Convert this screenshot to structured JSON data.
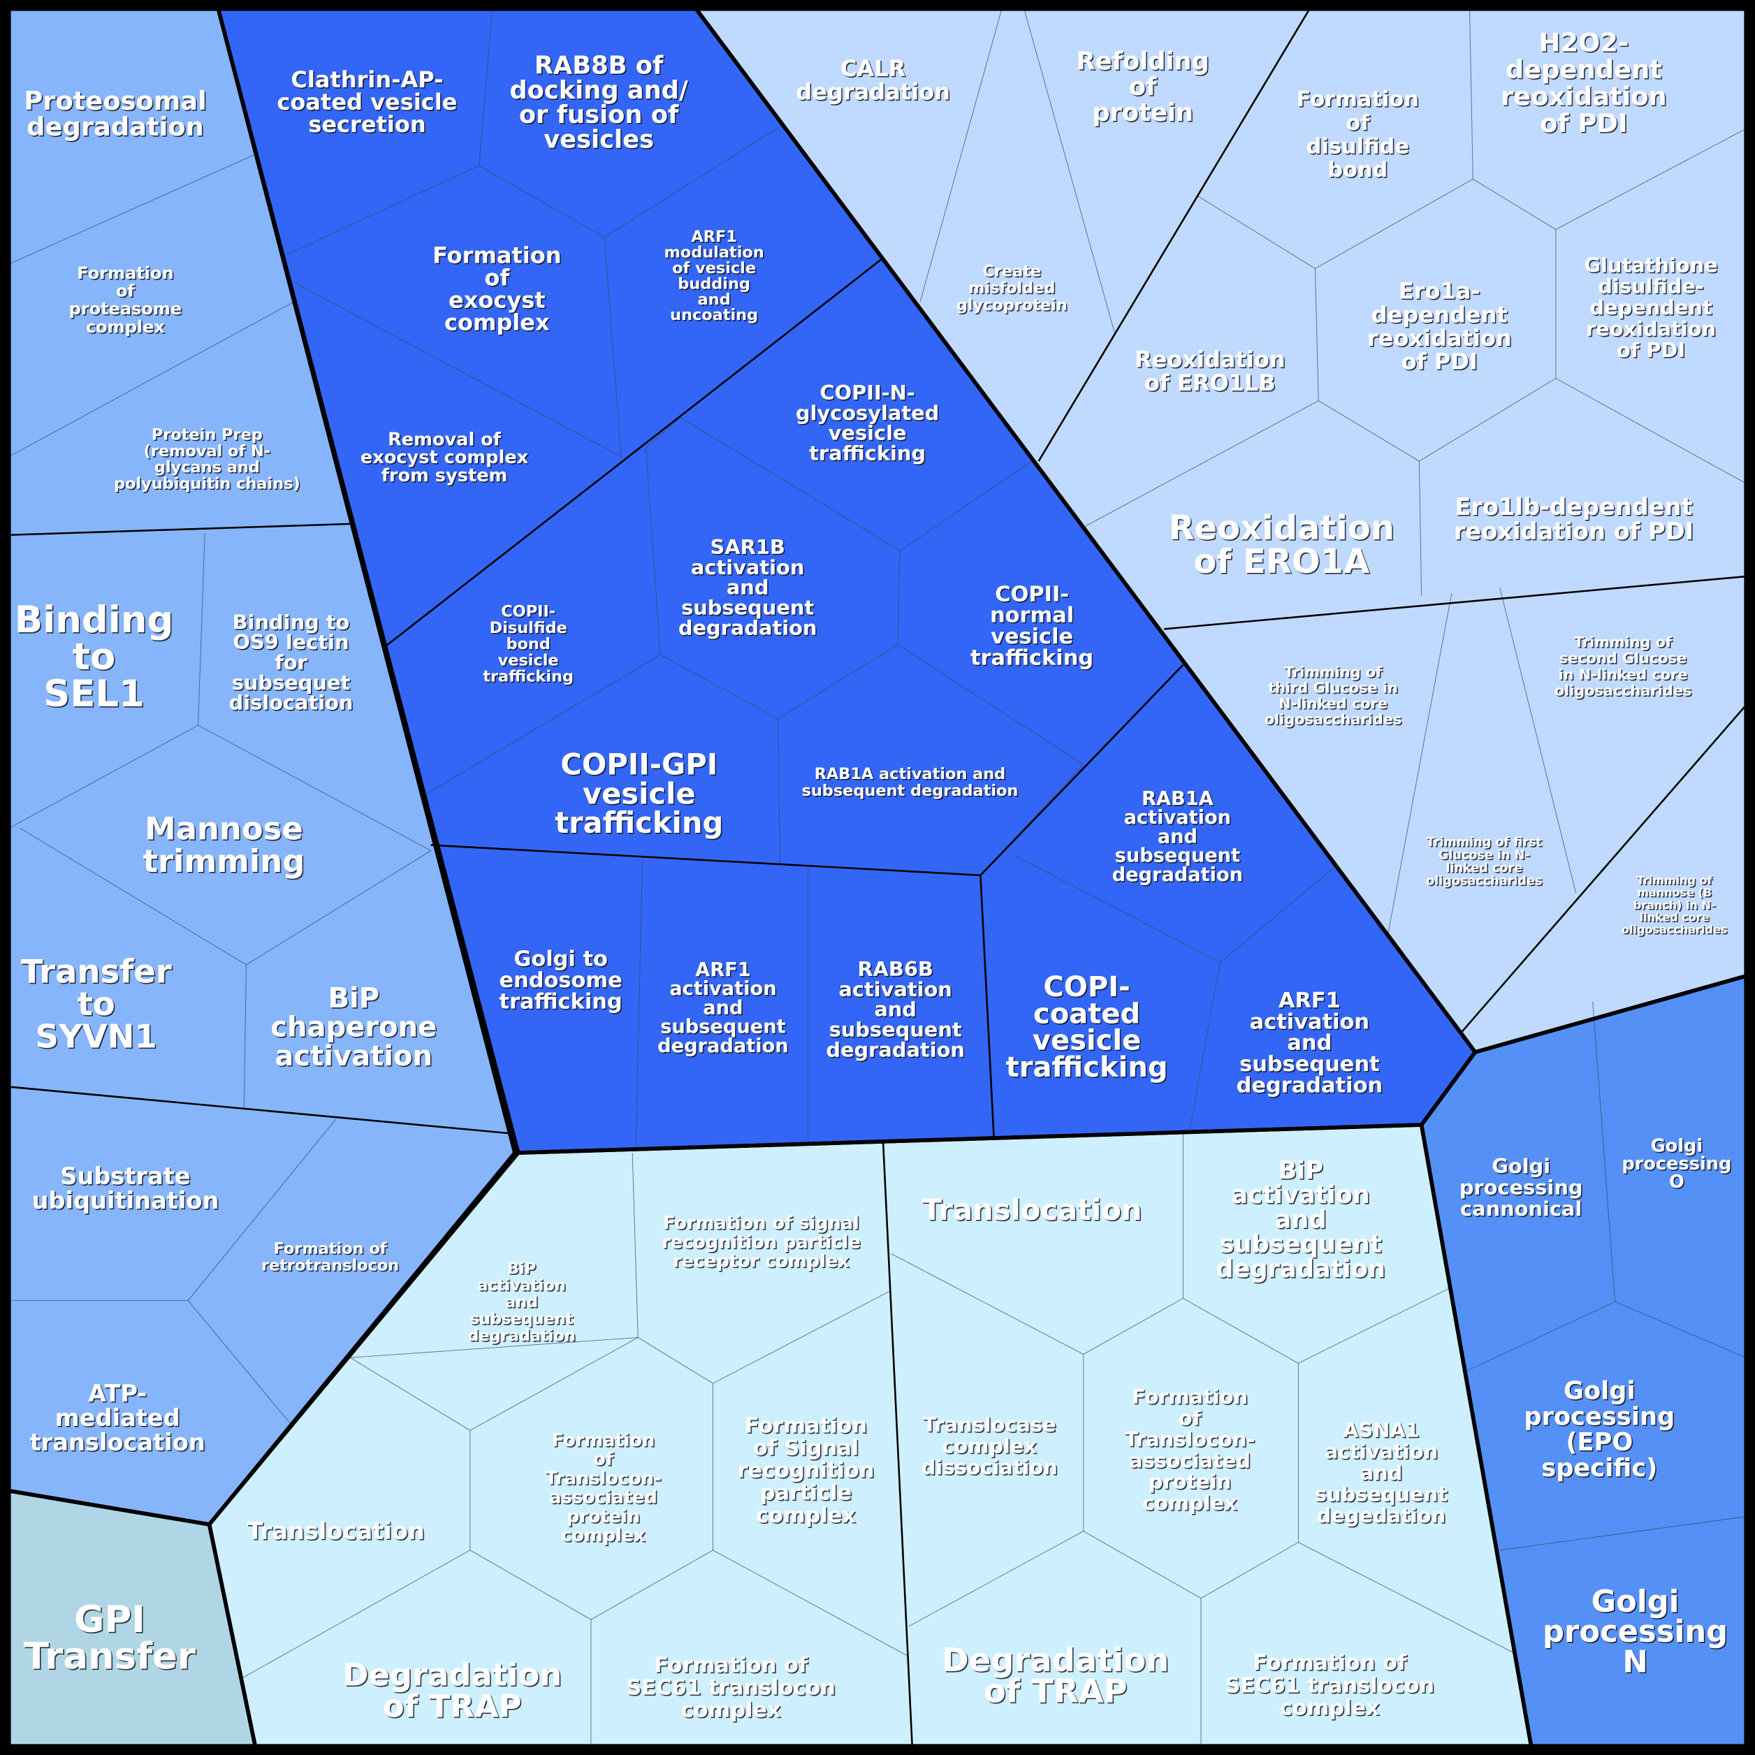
{
  "groups": {
    "erad": {
      "color": "#86b5fb"
    },
    "vesicle": {
      "color": "#3366f6"
    },
    "folding": {
      "color": "#c0daff"
    },
    "golgi": {
      "color": "#5590f6"
    },
    "translocation": {
      "color": "#cdeffe"
    },
    "gpi": {
      "color": "#b0d6e6"
    }
  },
  "cells": [
    {
      "group": "erad",
      "lines": [
        "Proteosomal",
        "degradation"
      ]
    },
    {
      "group": "erad",
      "lines": [
        "Formation",
        "of",
        "proteasome",
        "complex"
      ]
    },
    {
      "group": "erad",
      "lines": [
        "Protein Prep",
        "(removal of N-",
        "glycans and",
        "polyubiquitin chains)"
      ]
    },
    {
      "group": "erad",
      "lines": [
        "Binding",
        "to",
        "SEL1"
      ]
    },
    {
      "group": "erad",
      "lines": [
        "Binding to",
        "OS9 lectin",
        "for",
        "subsequet",
        "dislocation"
      ]
    },
    {
      "group": "erad",
      "lines": [
        "Mannose",
        "trimming"
      ]
    },
    {
      "group": "erad",
      "lines": [
        "Transfer",
        "to",
        "SYVN1"
      ]
    },
    {
      "group": "erad",
      "lines": [
        "BiP",
        "chaperone",
        "activation"
      ]
    },
    {
      "group": "erad",
      "lines": [
        "Substrate",
        "ubiquitination"
      ]
    },
    {
      "group": "erad",
      "lines": [
        "Formation of",
        "retrotranslocon"
      ]
    },
    {
      "group": "erad",
      "lines": [
        "ATP-",
        "mediated",
        "translocation"
      ]
    },
    {
      "group": "gpi",
      "lines": [
        "GPI",
        "Transfer"
      ]
    },
    {
      "group": "vesicle",
      "lines": [
        "Clathrin-AP-",
        "coated vesicle",
        "secretion"
      ]
    },
    {
      "group": "vesicle",
      "lines": [
        "RAB8B of",
        "docking and/",
        "or fusion of",
        "vesicles"
      ]
    },
    {
      "group": "vesicle",
      "lines": [
        "Formation",
        "of",
        "exocyst",
        "complex"
      ]
    },
    {
      "group": "vesicle",
      "lines": [
        "ARF1",
        "modulation",
        "of vesicle",
        "budding",
        "and",
        "uncoating"
      ]
    },
    {
      "group": "vesicle",
      "lines": [
        "Removal of",
        "exocyst complex",
        "from system"
      ]
    },
    {
      "group": "vesicle",
      "lines": [
        "COPII-N-",
        "glycosylated",
        "vesicle",
        "trafficking"
      ]
    },
    {
      "group": "vesicle",
      "lines": [
        "SAR1B",
        "activation",
        "and",
        "subsequent",
        "degradation"
      ]
    },
    {
      "group": "vesicle",
      "lines": [
        "COPII-",
        "Disulfide",
        "bond",
        "vesicle",
        "trafficking"
      ]
    },
    {
      "group": "vesicle",
      "lines": [
        "COPII-",
        "normal",
        "vesicle",
        "trafficking"
      ]
    },
    {
      "group": "vesicle",
      "lines": [
        "COPII-GPI",
        "vesicle",
        "trafficking"
      ]
    },
    {
      "group": "vesicle",
      "lines": [
        "RAB1A activation and",
        "subsequent degradation"
      ]
    },
    {
      "group": "vesicle",
      "lines": [
        "RAB1A",
        "activation",
        "and",
        "subsequent",
        "degradation"
      ]
    },
    {
      "group": "vesicle",
      "lines": [
        "Golgi to",
        "endosome",
        "trafficking"
      ]
    },
    {
      "group": "vesicle",
      "lines": [
        "ARF1",
        "activation",
        "and",
        "subsequent",
        "degradation"
      ]
    },
    {
      "group": "vesicle",
      "lines": [
        "RAB6B",
        "activation",
        "and",
        "subsequent",
        "degradation"
      ]
    },
    {
      "group": "vesicle",
      "lines": [
        "COPI-",
        "coated",
        "vesicle",
        "trafficking"
      ]
    },
    {
      "group": "vesicle",
      "lines": [
        "ARF1",
        "activation",
        "and",
        "subsequent",
        "degradation"
      ]
    },
    {
      "group": "folding",
      "lines": [
        "CALR",
        "degradation"
      ]
    },
    {
      "group": "folding",
      "lines": [
        "Create",
        "misfolded",
        "glycoprotein"
      ]
    },
    {
      "group": "folding",
      "lines": [
        "Refolding",
        "of",
        "protein"
      ]
    },
    {
      "group": "folding",
      "lines": [
        "Formation",
        "of",
        "disulfide",
        "bond"
      ]
    },
    {
      "group": "folding",
      "lines": [
        "H2O2-",
        "dependent",
        "reoxidation",
        "of PDI"
      ]
    },
    {
      "group": "folding",
      "lines": [
        "Reoxidation",
        "of ERO1LB"
      ]
    },
    {
      "group": "folding",
      "lines": [
        "Ero1a-",
        "dependent",
        "reoxidation",
        "of PDI"
      ]
    },
    {
      "group": "folding",
      "lines": [
        "Glutathione",
        "disulfide-",
        "dependent",
        "reoxidation",
        "of PDI"
      ]
    },
    {
      "group": "folding",
      "lines": [
        "Reoxidation",
        "of ERO1A"
      ]
    },
    {
      "group": "folding",
      "lines": [
        "Ero1lb-dependent",
        "reoxidation of PDI"
      ]
    },
    {
      "group": "folding",
      "lines": [
        "Trimming of",
        "third Glucose in",
        "N-linked core",
        "oligosaccharides"
      ]
    },
    {
      "group": "folding",
      "lines": [
        "Trimming of",
        "second Glucose",
        "in N-linked core",
        "oligosaccharides"
      ]
    },
    {
      "group": "folding",
      "lines": [
        "Trimming of first",
        "Glucose in N-",
        "linked core",
        "oligosaccharides"
      ]
    },
    {
      "group": "folding",
      "lines": [
        "Trimming of",
        "mannose (B",
        "branch) in N-",
        "linked core",
        "oligosaccharides"
      ]
    },
    {
      "group": "golgi",
      "lines": [
        "Golgi",
        "processing",
        "cannonical"
      ]
    },
    {
      "group": "golgi",
      "lines": [
        "Golgi",
        "processing",
        "O"
      ]
    },
    {
      "group": "golgi",
      "lines": [
        "Golgi",
        "processing",
        "(EPO",
        "specific)"
      ]
    },
    {
      "group": "golgi",
      "lines": [
        "Golgi",
        "processing",
        "N"
      ]
    },
    {
      "group": "translocation",
      "lines": [
        "BiP",
        "activation",
        "and",
        "subsequent",
        "degradation"
      ]
    },
    {
      "group": "translocation",
      "lines": [
        "Formation of signal",
        "recognition particle",
        "receptor complex"
      ]
    },
    {
      "group": "translocation",
      "lines": [
        "Translocation"
      ]
    },
    {
      "group": "translocation",
      "lines": [
        "BiP",
        "activation",
        "and",
        "subsequent",
        "degradation"
      ]
    },
    {
      "group": "translocation",
      "lines": [
        "Translocation"
      ]
    },
    {
      "group": "translocation",
      "lines": [
        "Formation",
        "of",
        "Translocon-",
        "associated",
        "protein",
        "complex"
      ]
    },
    {
      "group": "translocation",
      "lines": [
        "Formation",
        "of Signal",
        "recognition",
        "particle",
        "complex"
      ]
    },
    {
      "group": "translocation",
      "lines": [
        "Translocase",
        "complex",
        "dissociation"
      ]
    },
    {
      "group": "translocation",
      "lines": [
        "Formation",
        "of",
        "Translocon-",
        "associated",
        "protein",
        "complex"
      ]
    },
    {
      "group": "translocation",
      "lines": [
        "ASNA1",
        "activation",
        "and",
        "subsequent",
        "degedation"
      ]
    },
    {
      "group": "translocation",
      "lines": [
        "Degradation",
        "of TRAP"
      ]
    },
    {
      "group": "translocation",
      "lines": [
        "Formation of",
        "SEC61 translocon",
        "complex"
      ]
    },
    {
      "group": "translocation",
      "lines": [
        "Degradation",
        "of TRAP"
      ]
    },
    {
      "group": "translocation",
      "lines": [
        "Formation of",
        "SEC61 translocon",
        "complex"
      ]
    }
  ]
}
